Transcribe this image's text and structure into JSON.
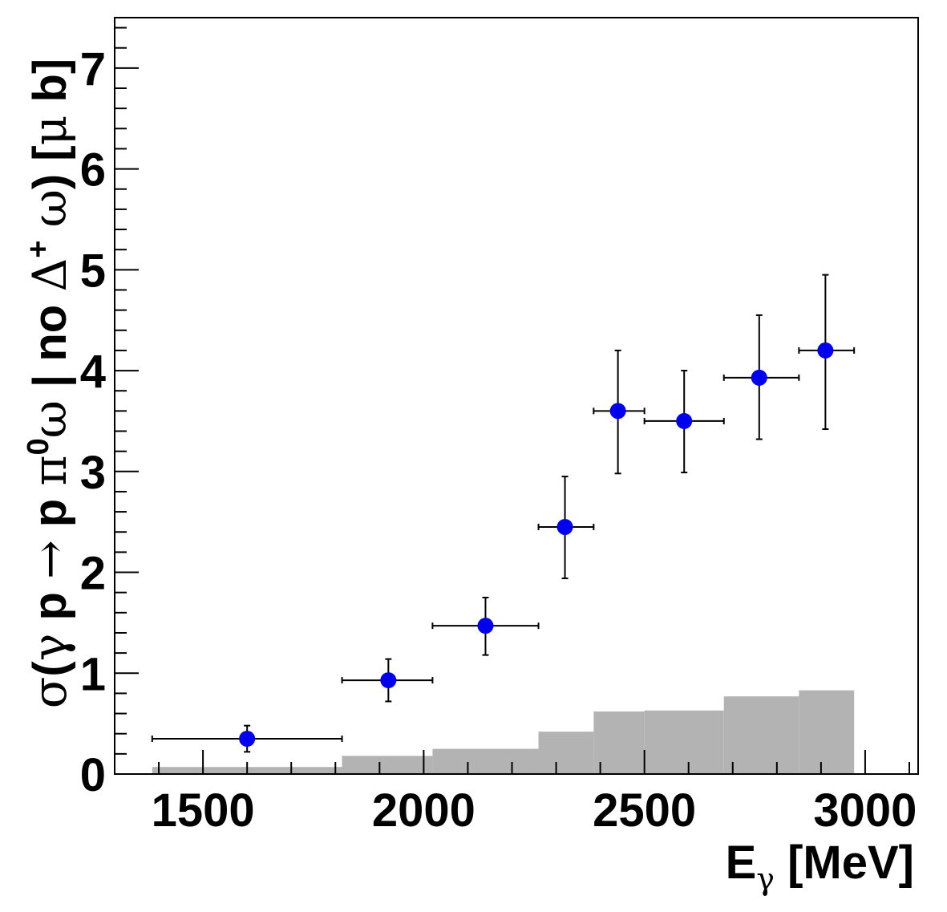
{
  "chart_data": {
    "type": "scatter",
    "xlabel": {
      "main": "E",
      "sub": "γ",
      "rest": " [MeV]"
    },
    "ylabel": {
      "parts": [
        {
          "t": "σ",
          "sym": true
        },
        {
          "t": "(",
          "sym": false
        },
        {
          "t": "γ",
          "sym": true
        },
        {
          "t": " p ",
          "sym": false
        },
        {
          "t": "→",
          "sym": true
        },
        {
          "t": " p ",
          "sym": false
        },
        {
          "t": "π",
          "sym": true
        },
        {
          "t": "0",
          "sup": true
        },
        {
          "t": "ω",
          "sym": true
        },
        {
          "t": " | no ",
          "sym": false
        },
        {
          "t": "Δ",
          "sym": true
        },
        {
          "t": "+",
          "sup": true
        },
        {
          "t": " ",
          "sym": false
        },
        {
          "t": "ω",
          "sym": true
        },
        {
          "t": ") [",
          "sym": false
        },
        {
          "t": "μ",
          "sym": true
        },
        {
          "t": " b]",
          "sym": false
        }
      ]
    },
    "xlim": [
      1300,
      3120
    ],
    "ylim": [
      0,
      7.5
    ],
    "xticks": [
      "1500",
      "2000",
      "2500",
      "3000"
    ],
    "xtick_values": [
      1500,
      2000,
      2500,
      3000
    ],
    "yticks": [
      "0",
      "1",
      "2",
      "3",
      "4",
      "5",
      "6",
      "7"
    ],
    "ytick_values": [
      0,
      1,
      2,
      3,
      4,
      5,
      6,
      7
    ],
    "points": [
      {
        "x": 1600,
        "y": 0.35,
        "xerr": [
          1385,
          1815
        ],
        "yerr": [
          0.22,
          0.48
        ]
      },
      {
        "x": 1920,
        "y": 0.93,
        "xerr": [
          1815,
          2020
        ],
        "yerr": [
          0.72,
          1.14
        ]
      },
      {
        "x": 2140,
        "y": 1.47,
        "xerr": [
          2020,
          2260
        ],
        "yerr": [
          1.18,
          1.75
        ]
      },
      {
        "x": 2320,
        "y": 2.45,
        "xerr": [
          2260,
          2385
        ],
        "yerr": [
          1.94,
          2.95
        ]
      },
      {
        "x": 2440,
        "y": 3.6,
        "xerr": [
          2385,
          2500
        ],
        "yerr": [
          2.98,
          4.2
        ]
      },
      {
        "x": 2590,
        "y": 3.5,
        "xerr": [
          2500,
          2680
        ],
        "yerr": [
          2.99,
          4.0
        ]
      },
      {
        "x": 2760,
        "y": 3.93,
        "xerr": [
          2680,
          2850
        ],
        "yerr": [
          3.32,
          4.55
        ]
      },
      {
        "x": 2910,
        "y": 4.2,
        "xerr": [
          2850,
          2975
        ],
        "yerr": [
          3.42,
          4.95
        ]
      }
    ],
    "systematic_bars": [
      {
        "x0": 1385,
        "x1": 1815,
        "y": 0.07
      },
      {
        "x0": 1815,
        "x1": 2020,
        "y": 0.18
      },
      {
        "x0": 2020,
        "x1": 2260,
        "y": 0.25
      },
      {
        "x0": 2260,
        "x1": 2385,
        "y": 0.42
      },
      {
        "x0": 2385,
        "x1": 2500,
        "y": 0.62
      },
      {
        "x0": 2500,
        "x1": 2680,
        "y": 0.63
      },
      {
        "x0": 2680,
        "x1": 2850,
        "y": 0.77
      },
      {
        "x0": 2850,
        "x1": 2975,
        "y": 0.83
      }
    ],
    "colors": {
      "points": "#0000ee",
      "systematic": "#b3b3b3",
      "axis": "#000000"
    },
    "grid": false
  }
}
